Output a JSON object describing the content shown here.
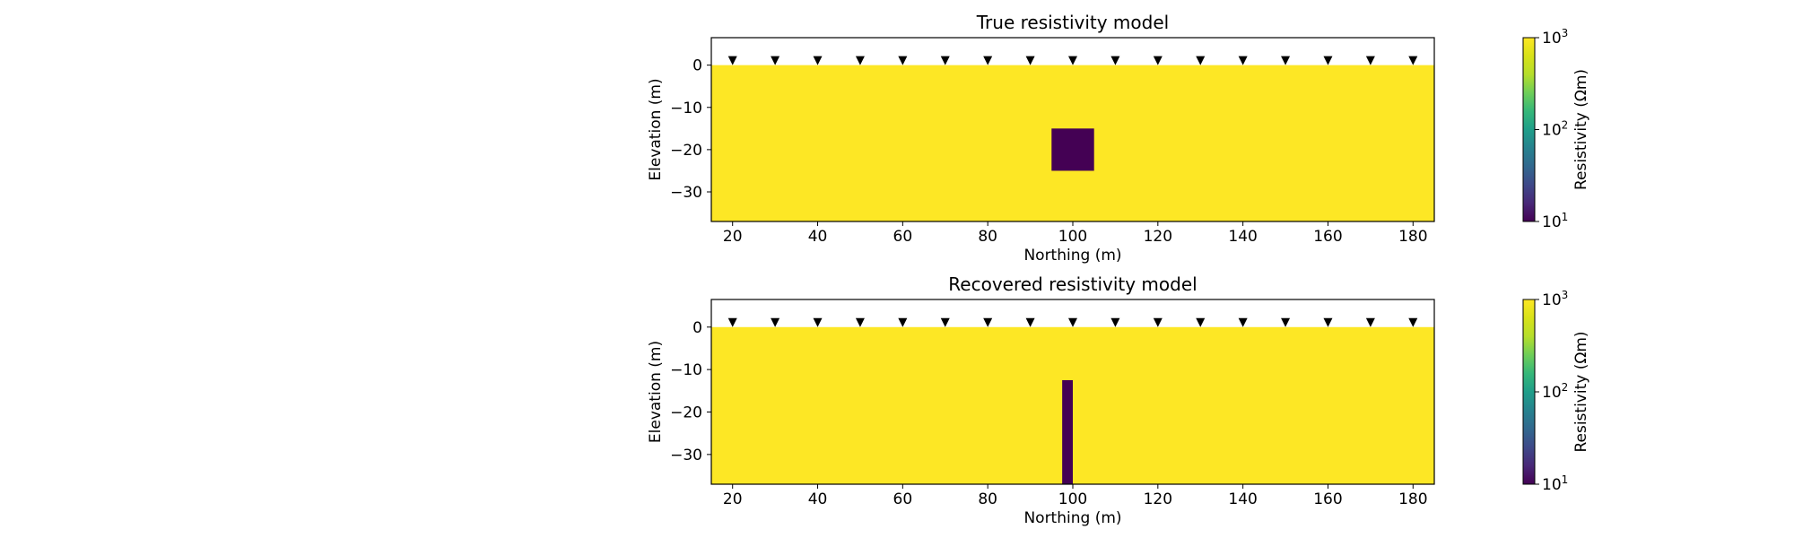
{
  "chart_data": [
    {
      "type": "heatmap",
      "title": "True resistivity model",
      "xlabel": "Northing (m)",
      "ylabel": "Elevation (m)",
      "xlim": [
        15,
        185
      ],
      "ylim": [
        -37,
        6.5
      ],
      "xticks": [
        20,
        40,
        60,
        80,
        100,
        120,
        140,
        160,
        180
      ],
      "yticks": [
        0,
        -10,
        -20,
        -30
      ],
      "xtick_labels": [
        "20",
        "40",
        "60",
        "80",
        "100",
        "120",
        "140",
        "160",
        "180"
      ],
      "ytick_labels": [
        "0",
        "−10",
        "−20",
        "−30"
      ],
      "background_resistivity": 1000,
      "background_color": "#fde725",
      "anomaly": {
        "x0": 95,
        "x1": 105,
        "y0": -25,
        "y1": -15,
        "resistivity": 10,
        "color": "#440154"
      },
      "electrodes_x": [
        20,
        30,
        40,
        50,
        60,
        70,
        80,
        90,
        100,
        110,
        120,
        130,
        140,
        150,
        160,
        170,
        180
      ],
      "colorbar": {
        "label": "Resistivity (Ωm)",
        "scale": "log",
        "range": [
          10,
          1000
        ],
        "ticks": [
          {
            "base": "10",
            "exp": "3"
          },
          {
            "base": "10",
            "exp": "2"
          },
          {
            "base": "10",
            "exp": "1"
          }
        ],
        "colormap": "viridis"
      }
    },
    {
      "type": "heatmap",
      "title": "Recovered resistivity model",
      "xlabel": "Northing (m)",
      "ylabel": "Elevation (m)",
      "xlim": [
        15,
        185
      ],
      "ylim": [
        -37,
        6.5
      ],
      "xticks": [
        20,
        40,
        60,
        80,
        100,
        120,
        140,
        160,
        180
      ],
      "yticks": [
        0,
        -10,
        -20,
        -30
      ],
      "xtick_labels": [
        "20",
        "40",
        "60",
        "80",
        "100",
        "120",
        "140",
        "160",
        "180"
      ],
      "ytick_labels": [
        "0",
        "−10",
        "−20",
        "−30"
      ],
      "background_resistivity": 1000,
      "background_color": "#fde725",
      "anomaly": {
        "x0": 97.5,
        "x1": 100,
        "y0": -37,
        "y1": -12.5,
        "resistivity": 10,
        "color": "#440154"
      },
      "electrodes_x": [
        20,
        30,
        40,
        50,
        60,
        70,
        80,
        90,
        100,
        110,
        120,
        130,
        140,
        150,
        160,
        170,
        180
      ],
      "colorbar": {
        "label": "Resistivity (Ωm)",
        "scale": "log",
        "range": [
          10,
          1000
        ],
        "ticks": [
          {
            "base": "10",
            "exp": "3"
          },
          {
            "base": "10",
            "exp": "2"
          },
          {
            "base": "10",
            "exp": "1"
          }
        ],
        "colormap": "viridis"
      }
    }
  ]
}
